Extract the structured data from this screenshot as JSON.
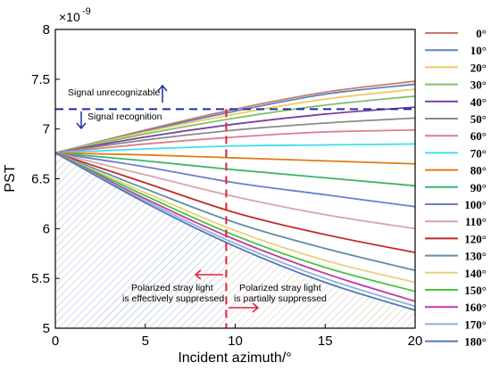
{
  "chart_data": {
    "type": "line",
    "xlabel": "Incident azimuth/°",
    "ylabel": "PST",
    "y_multiplier_base": "×10",
    "y_multiplier_exp": "-9",
    "xlim": [
      0,
      20
    ],
    "ylim": [
      5,
      8
    ],
    "x_ticks": [
      "0",
      "5",
      "10",
      "15",
      "20"
    ],
    "y_ticks": [
      "5",
      "5.5",
      "6",
      "6.5",
      "7",
      "7.5",
      "8"
    ],
    "x": [
      0,
      5,
      10,
      15,
      20
    ],
    "series": [
      {
        "name": "0°",
        "values": [
          6.76,
          6.99,
          7.2,
          7.37,
          7.48
        ],
        "color": "#c97a6c"
      },
      {
        "name": "10°",
        "values": [
          6.76,
          6.98,
          7.18,
          7.35,
          7.45
        ],
        "color": "#5a84be"
      },
      {
        "name": "20°",
        "values": [
          6.76,
          6.97,
          7.15,
          7.3,
          7.4
        ],
        "color": "#f2c75c"
      },
      {
        "name": "30°",
        "values": [
          6.76,
          6.95,
          7.11,
          7.24,
          7.33
        ],
        "color": "#7bbf6a"
      },
      {
        "name": "40°",
        "values": [
          6.76,
          6.92,
          7.05,
          7.15,
          7.22
        ],
        "color": "#7b3fa3"
      },
      {
        "name": "50°",
        "values": [
          6.76,
          6.89,
          6.99,
          7.06,
          7.11
        ],
        "color": "#8a8a8a"
      },
      {
        "name": "60°",
        "values": [
          6.76,
          6.85,
          6.92,
          6.97,
          6.99
        ],
        "color": "#e07b8e"
      },
      {
        "name": "70°",
        "values": [
          6.76,
          6.8,
          6.83,
          6.84,
          6.85
        ],
        "color": "#3fe0e8"
      },
      {
        "name": "80°",
        "values": [
          6.76,
          6.74,
          6.71,
          6.68,
          6.65
        ],
        "color": "#e07d14"
      },
      {
        "name": "90°",
        "values": [
          6.76,
          6.68,
          6.59,
          6.51,
          6.43
        ],
        "color": "#3bb56b"
      },
      {
        "name": "100°",
        "values": [
          6.76,
          6.62,
          6.46,
          6.34,
          6.22
        ],
        "color": "#6a7fc9"
      },
      {
        "name": "110°",
        "values": [
          6.76,
          6.54,
          6.32,
          6.14,
          6.0
        ],
        "color": "#d8a6a8"
      },
      {
        "name": "120°",
        "values": [
          6.76,
          6.46,
          6.16,
          5.94,
          5.76
        ],
        "color": "#c22a2a"
      },
      {
        "name": "130°",
        "values": [
          6.76,
          6.4,
          6.06,
          5.8,
          5.58
        ],
        "color": "#5e8fa6"
      },
      {
        "name": "140°",
        "values": [
          6.76,
          6.36,
          5.98,
          5.68,
          5.46
        ],
        "color": "#e8cf7a"
      },
      {
        "name": "150°",
        "values": [
          6.76,
          6.33,
          5.93,
          5.61,
          5.37
        ],
        "color": "#46c43a"
      },
      {
        "name": "160°",
        "values": [
          6.76,
          6.3,
          5.89,
          5.55,
          5.27
        ],
        "color": "#c23aa8"
      },
      {
        "name": "170°",
        "values": [
          6.76,
          6.28,
          5.85,
          5.5,
          5.22
        ],
        "color": "#8fb0d8"
      },
      {
        "name": "180°",
        "values": [
          6.76,
          6.26,
          5.82,
          5.46,
          5.18
        ],
        "color": "#5078b4"
      }
    ],
    "threshold": {
      "y": 7.2,
      "color": "#1f2f9e"
    },
    "divider": {
      "x": 9.5,
      "color": "#e0203a"
    },
    "annotations": {
      "signal_unrecognizable": "Signal unrecognizable",
      "signal_recognition": "Signal recognition",
      "suppressed_left_line1": "Polarized stray light",
      "suppressed_left_line2": "is effectively suppressed",
      "suppressed_right_line1": "Polarized stray light",
      "suppressed_right_line2": "is partially suppressed"
    },
    "legend_position": "right",
    "grid": false
  }
}
